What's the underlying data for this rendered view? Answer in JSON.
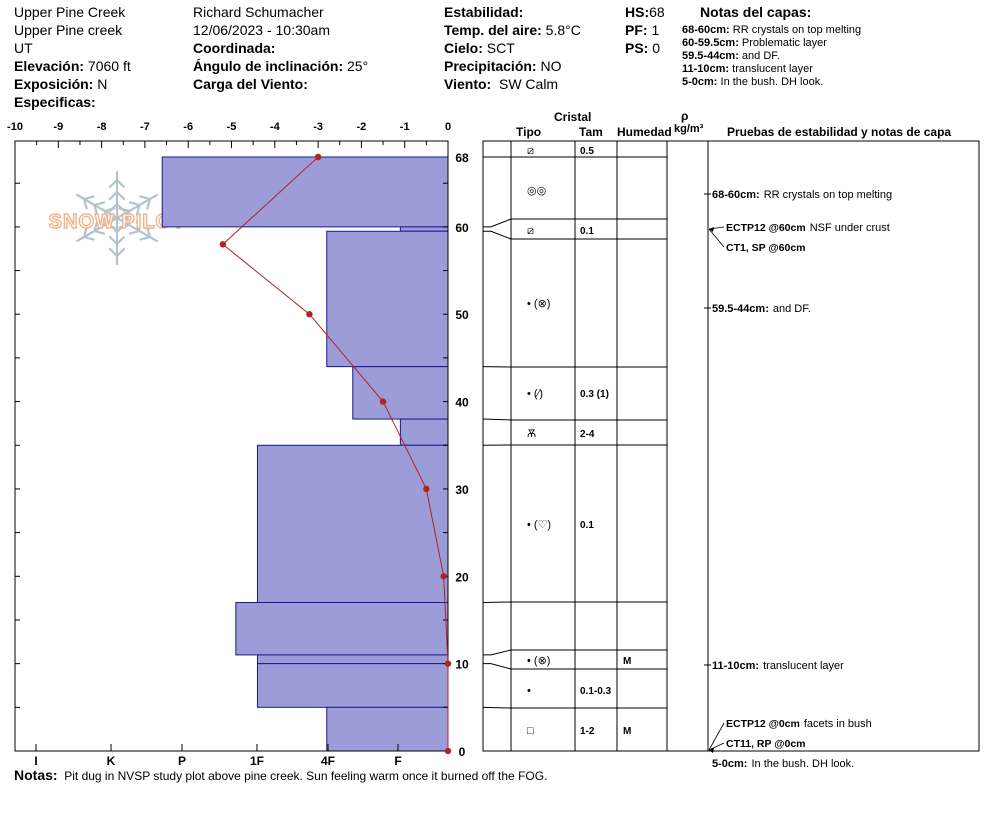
{
  "header": {
    "location": "Upper Pine Creek",
    "sublocation": "Upper Pine creek",
    "state": "UT",
    "elevation_label": "Elevación:",
    "elevation": "7060 ft",
    "aspect_label": "Exposición:",
    "aspect": "N",
    "specifics_label": "Especificas:",
    "observer": "Richard Schumacher",
    "datetime": "12/06/2023 - 10:30am",
    "coordinate_label": "Coordinada:",
    "slope_label": "Ángulo de inclinación:",
    "slope": "25°",
    "wind_load_label": "Carga del Viento:",
    "stability_label": "Estabilidad:",
    "air_temp_label": "Temp. del aire:",
    "air_temp": "5.8°C",
    "sky_label": "Cielo:",
    "sky": "SCT",
    "precip_label": "Precipitación:",
    "precip": "NO",
    "wind_label": "Viento:",
    "wind": "SW Calm",
    "hs_label": "HS:",
    "hs": "68",
    "pf_label": "PF:",
    "pf": "1",
    "ps_label": "PS:",
    "ps": "0"
  },
  "layer_notes": {
    "title": "Notas del capas:",
    "items": [
      {
        "range": "68-60cm:",
        "text": "RR crystals on top melting"
      },
      {
        "range": "60-59.5cm:",
        "text": "Problematic layer"
      },
      {
        "range": "59.5-44cm:",
        "text": "and DF."
      },
      {
        "range": "11-10cm:",
        "text": "translucent layer"
      },
      {
        "range": "5-0cm:",
        "text": "In the bush. DH look."
      }
    ]
  },
  "columns": {
    "crystal": "Cristal",
    "type": "Tipo",
    "size": "Tam",
    "humidity": "Humedad",
    "rho": "ρ",
    "density_unit": "kg/m³",
    "tests": "Pruebas de estabilidad y notas de capa"
  },
  "logo": "SNOW PILOT",
  "notes": {
    "label": "Notas:",
    "text": "Pit dug in NVSP study plot above pine creek. Sun feeling warm once it burned off the FOG."
  },
  "chart_data": {
    "type": "bar",
    "x_ticks": [
      "-10",
      "-9",
      "-8",
      "-7",
      "-6",
      "-5",
      "-4",
      "-3",
      "-2",
      "-1",
      "0"
    ],
    "hardness_ticks": [
      "I",
      "K",
      "P",
      "1F",
      "4F",
      "F"
    ],
    "depth_ticks": [
      "68",
      "60",
      "50",
      "40",
      "30",
      "20",
      "10",
      "0"
    ],
    "xlim": [
      -10,
      0
    ],
    "ylim": [
      0,
      68
    ],
    "colors": {
      "bar": "#9c9cd8",
      "bar_edge": "#1a1a8c",
      "temp": "#b22222"
    },
    "hardness_layers": [
      {
        "top": 68,
        "bottom": 60,
        "value": 6.6
      },
      {
        "top": 60,
        "bottom": 59.5,
        "value": 1.1
      },
      {
        "top": 59.5,
        "bottom": 44,
        "value": 2.8
      },
      {
        "top": 44,
        "bottom": 38,
        "value": 2.2
      },
      {
        "top": 38,
        "bottom": 35,
        "value": 1.1
      },
      {
        "top": 35,
        "bottom": 17,
        "value": 4.4
      },
      {
        "top": 17,
        "bottom": 11,
        "value": 4.9
      },
      {
        "top": 11,
        "bottom": 10,
        "value": 4.4
      },
      {
        "top": 10,
        "bottom": 5,
        "value": 4.4
      },
      {
        "top": 5,
        "bottom": 0,
        "value": 2.8
      }
    ],
    "temperature_profile": [
      {
        "depth": 68,
        "temp": -3.0
      },
      {
        "depth": 58,
        "temp": -5.2
      },
      {
        "depth": 50,
        "temp": -3.2
      },
      {
        "depth": 40,
        "temp": -1.5
      },
      {
        "depth": 30,
        "temp": -0.5
      },
      {
        "depth": 20,
        "temp": -0.1
      },
      {
        "depth": 10,
        "temp": 0.0
      },
      {
        "depth": 0,
        "temp": 0.0
      }
    ]
  },
  "stratigraphy": {
    "boundaries": [
      68,
      60,
      59.5,
      44,
      38,
      35,
      17,
      11,
      10,
      5,
      0
    ],
    "layers": [
      {
        "center": 68,
        "glyph": "⧄",
        "size": "0.5",
        "hum": ""
      },
      {
        "center": 64,
        "glyph": "◎◎",
        "size": "",
        "hum": ""
      },
      {
        "center": 59.5,
        "glyph": "⧄",
        "size": "0.1",
        "hum": ""
      },
      {
        "center": 51.7,
        "glyph": "• (⊗)",
        "size": "",
        "hum": ""
      },
      {
        "center": 41,
        "glyph": "• (⁄)",
        "size": "0.3 (1)",
        "hum": ""
      },
      {
        "center": 36.5,
        "glyph": "Ѫ",
        "size": "2-4",
        "hum": ""
      },
      {
        "center": 26,
        "glyph": "• (♡)",
        "size": "0.1",
        "hum": ""
      },
      {
        "center": 10.5,
        "glyph": "• (⊗)",
        "size": "",
        "hum": "M"
      },
      {
        "center": 7,
        "glyph": "•",
        "size": "0.1-0.3",
        "hum": ""
      },
      {
        "center": 2.5,
        "glyph": "□",
        "size": "1-2",
        "hum": "M"
      }
    ],
    "tests": [
      {
        "depth": 64,
        "bold": "68-60cm:",
        "text": "RR crystals on top melting"
      },
      {
        "depth": 60,
        "bold": "ECTP12 @60cm",
        "text": "NSF under crust"
      },
      {
        "depth": 57.8,
        "bold": "CT1, SP @60cm",
        "text": ""
      },
      {
        "depth": 50.5,
        "bold": "59.5-44cm:",
        "text": "and DF."
      },
      {
        "depth": 9.9,
        "bold": "11-10cm:",
        "text": "translucent layer"
      },
      {
        "depth": 3.2,
        "bold": "ECTP12 @0cm",
        "text": "facets in bush"
      },
      {
        "depth": 0.9,
        "bold": "CT11, RP @0cm",
        "text": ""
      },
      {
        "depth": -1.3,
        "bold": "5-0cm:",
        "text": "In the bush. DH look."
      }
    ]
  }
}
